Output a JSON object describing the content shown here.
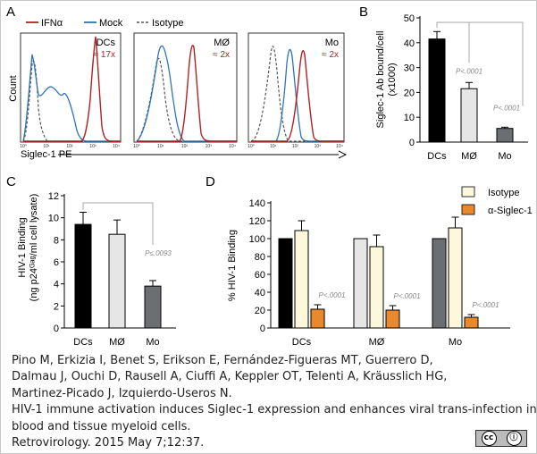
{
  "citation": {
    "lines": [
      "Pino M, Erkizia I, Benet S, Erikson E, Fernández-Figueras MT, Guerrero D,",
      "Dalmau J, Ouchi D, Rausell A, Ciuffi A, Keppler OT, Telenti A, Kräusslich HG,",
      "Martinez-Picado J, Izquierdo-Useros N.",
      "HIV-1 immune activation induces Siglec-1 expression and enhances viral trans-infection in",
      "blood and tissue myeloid cells.",
      "Retrovirology. 2015 May 7;12:37."
    ],
    "license_label": "cc"
  },
  "colors": {
    "ifn": "#b22222",
    "mock": "#2f74b5",
    "isotype": "#555555",
    "black": "#000000",
    "light": "#e6e6e6",
    "dark": "#6b6f72",
    "cream": "#fdf8dc",
    "orange": "#e8892e"
  },
  "chart_data": [
    {
      "panel": "A",
      "type": "histogram",
      "legend": [
        {
          "label": "IFNα",
          "style": "solid",
          "color": "#b22222"
        },
        {
          "label": "Mock",
          "style": "solid",
          "color": "#2f74b5"
        },
        {
          "label": "Isotype",
          "style": "dashed",
          "color": "#555555"
        }
      ],
      "ylabel": "Count",
      "xlabel": "Siglec-1 PE",
      "x_ticks": [
        "10⁰",
        "10¹",
        "10²",
        "10³",
        "10⁴"
      ],
      "subplots": [
        {
          "cell": "DCs",
          "fold": "≈ 17x"
        },
        {
          "cell": "MØ",
          "fold": "≈ 2x"
        },
        {
          "cell": "Mo",
          "fold": "≈ 2x"
        }
      ]
    },
    {
      "panel": "B",
      "type": "bar",
      "categories": [
        "DCs",
        "MØ",
        "Mo"
      ],
      "values": [
        41.5,
        21.5,
        5.5
      ],
      "errors": [
        3,
        2.5,
        0.5
      ],
      "ylabel": "Siglec-1 Ab bound/cell (x1000)",
      "ylim": [
        0,
        50
      ],
      "yticks": [
        0,
        10,
        20,
        30,
        40,
        50
      ],
      "annotations": [
        "",
        "P<.0001",
        "P<.0001"
      ]
    },
    {
      "panel": "C",
      "type": "bar",
      "categories": [
        "DCs",
        "MØ",
        "Mo"
      ],
      "values": [
        9.4,
        8.5,
        3.8
      ],
      "errors": [
        1.1,
        1.3,
        0.5
      ],
      "ylabel": "HIV-1 Binding (ng p24ᴳᵃᵍ/ml cell lysate)",
      "ylim": [
        0,
        12
      ],
      "yticks": [
        0,
        2,
        4,
        6,
        8,
        10,
        12
      ],
      "annotations": [
        "",
        "",
        "P≤.0093"
      ]
    },
    {
      "panel": "D",
      "type": "bar",
      "categories": [
        "DCs",
        "MØ",
        "Mo"
      ],
      "series": [
        {
          "name": "",
          "values": [
            100,
            100,
            100
          ],
          "errors": [
            0,
            0,
            0
          ]
        },
        {
          "name": "Isotype",
          "values": [
            109,
            91,
            112
          ],
          "errors": [
            11,
            13,
            12
          ]
        },
        {
          "name": "α-Siglec-1",
          "values": [
            21,
            20,
            12
          ],
          "errors": [
            5,
            5,
            3
          ]
        }
      ],
      "ylabel": "% HIV-1 Binding",
      "ylim": [
        0,
        140
      ],
      "yticks": [
        0,
        20,
        40,
        60,
        80,
        100,
        120,
        140
      ],
      "annotations": [
        "P<.0001",
        "P<.0001",
        "P<.0001"
      ]
    }
  ]
}
